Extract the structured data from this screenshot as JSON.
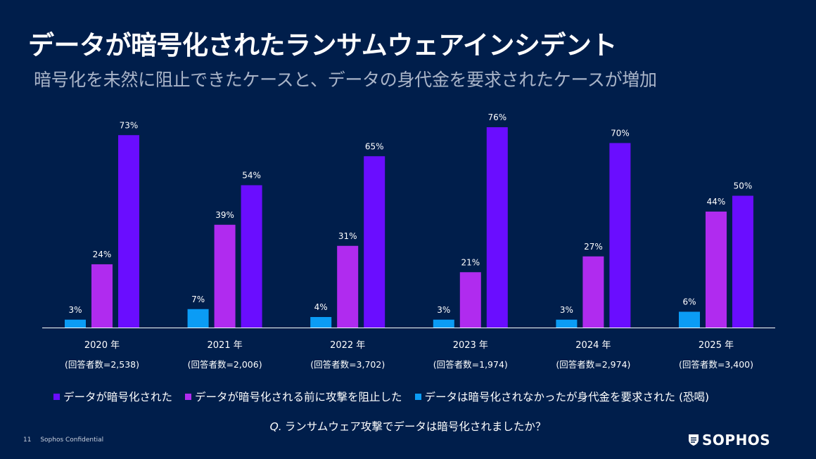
{
  "slide": {
    "title": "データが暗号化されたランサムウェアインシデント",
    "subtitle": "暗号化を未然に阻止できたケースと、データの身代金を要求されたケースが増加",
    "question_prefix": "Q.",
    "question": "ランサムウェア攻撃でデータは暗号化されましたか？",
    "page_number": "11",
    "confidential": "Sophos Confidential",
    "logo_text": "SOPHOS"
  },
  "colors": {
    "background": "#001E4B",
    "encrypted": "#6A0DFF",
    "stopped": "#B02BEF",
    "not_encrypted_extorted": "#0B9CF5",
    "axis": "#FFFFFF"
  },
  "chart_data": {
    "type": "bar",
    "title": "データが暗号化されたランサムウェアインシデント",
    "categories": [
      "2020 年",
      "2021 年",
      "2022 年",
      "2023 年",
      "2024 年",
      "2025 年"
    ],
    "respondents": [
      "(回答者数=2,538)",
      "(回答者数=2,006)",
      "(回答者数=3,702)",
      "(回答者数=1,974)",
      "(回答者数=2,974)",
      "(回答者数=3,400)"
    ],
    "series": [
      {
        "name": "データは暗号化されなかったが身代金を要求された (恐喝)",
        "key": "not_encrypted_extorted",
        "values": [
          3,
          7,
          4,
          3,
          3,
          6
        ],
        "labels": [
          "3%",
          "7%",
          "4%",
          "3%",
          "3%",
          "6%"
        ]
      },
      {
        "name": "データが暗号化される前に攻撃を阻止した",
        "key": "stopped",
        "values": [
          24,
          39,
          31,
          21,
          27,
          44
        ],
        "labels": [
          "24%",
          "39%",
          "31%",
          "21%",
          "27%",
          "44%"
        ]
      },
      {
        "name": "データが暗号化された",
        "key": "encrypted",
        "values": [
          73,
          54,
          65,
          76,
          70,
          50
        ],
        "labels": [
          "73%",
          "54%",
          "65%",
          "76%",
          "70%",
          "50%"
        ]
      }
    ],
    "legend_order": [
      "encrypted",
      "stopped",
      "not_encrypted_extorted"
    ],
    "ylim": [
      0,
      76
    ],
    "xlabel": "",
    "ylabel": "",
    "grid": false,
    "legend_position": "bottom"
  }
}
